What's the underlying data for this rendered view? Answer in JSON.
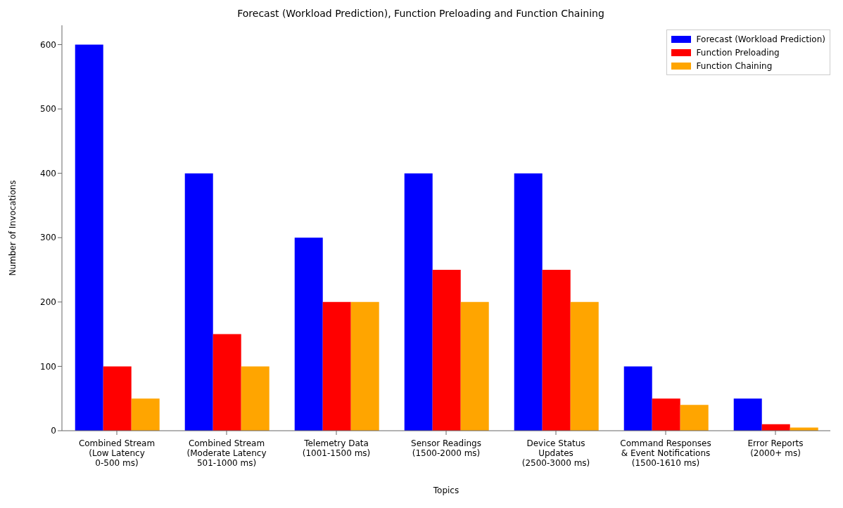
{
  "chart_data": {
    "type": "bar",
    "title": "Forecast (Workload Prediction), Function Preloading and Function Chaining",
    "xlabel": "Topics",
    "ylabel": "Number of Invocations",
    "categories": [
      "Combined Stream\n(Low Latency\n0-500 ms)",
      "Combined Stream\n(Moderate Latency\n501-1000 ms)",
      "Telemetry Data\n(1001-1500 ms)",
      "Sensor Readings\n(1500-2000 ms)",
      "Device Status\nUpdates\n(2500-3000 ms)",
      "Command Responses\n& Event Notifications\n(1500-1610 ms)",
      "Error Reports\n(2000+ ms)"
    ],
    "series": [
      {
        "name": "Forecast (Workload Prediction)",
        "color": "#0000ff",
        "values": [
          600,
          400,
          300,
          400,
          400,
          100,
          50
        ]
      },
      {
        "name": "Function Preloading",
        "color": "#ff0000",
        "values": [
          100,
          150,
          200,
          250,
          250,
          50,
          10
        ]
      },
      {
        "name": "Function Chaining",
        "color": "#ffa500",
        "values": [
          50,
          100,
          200,
          200,
          200,
          40,
          5
        ]
      }
    ],
    "ylim": [
      0,
      630
    ],
    "yticks": [
      0,
      100,
      200,
      300,
      400,
      500,
      600
    ],
    "grid": false,
    "legend": "top right"
  }
}
